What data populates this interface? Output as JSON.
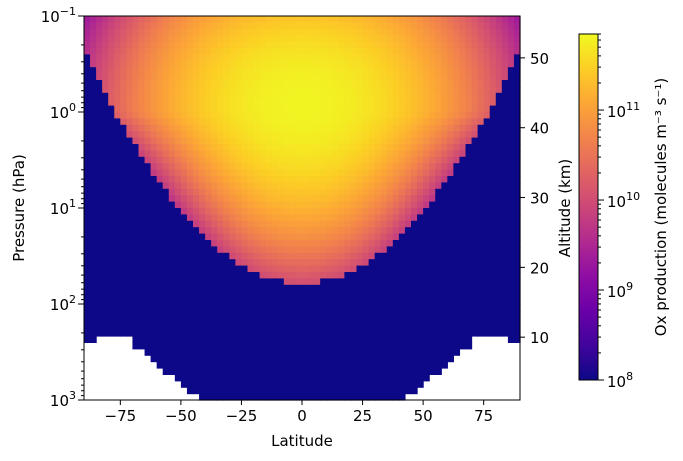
{
  "chart_data": {
    "type": "heatmap",
    "title": "",
    "xlabel": "Latitude",
    "ylabel": "Pressure (hPa)",
    "y2label": "Altitude (km)",
    "colorbar_label": "Ox production (molecules m⁻³ s⁻¹)",
    "colormap": "plasma",
    "xlim": [
      -90,
      90
    ],
    "ylim_pressure_hpa": [
      1000,
      0.1
    ],
    "y_scale": "log",
    "y2lim_km": [
      1,
      56
    ],
    "clim": [
      100000000.0,
      700000000000.0
    ],
    "c_scale": "log",
    "x_ticks": [
      -75,
      -50,
      -25,
      0,
      25,
      50,
      75
    ],
    "x_tick_labels": [
      "−75",
      "−50",
      "−25",
      "0",
      "25",
      "50",
      "75"
    ],
    "y_ticks": [
      {
        "value": 0.1,
        "base": "10",
        "exp": "−1"
      },
      {
        "value": 1,
        "base": "10",
        "exp": "0"
      },
      {
        "value": 10,
        "base": "10",
        "exp": "1"
      },
      {
        "value": 100,
        "base": "10",
        "exp": "2"
      },
      {
        "value": 1000,
        "base": "10",
        "exp": "3"
      }
    ],
    "y2_ticks": [
      10,
      20,
      30,
      40,
      50
    ],
    "c_ticks": [
      {
        "value": 100000000.0,
        "base": "10",
        "exp": "8"
      },
      {
        "value": 1000000000.0,
        "base": "10",
        "exp": "9"
      },
      {
        "value": 10000000000.0,
        "base": "10",
        "exp": "10"
      },
      {
        "value": 100000000000.0,
        "base": "10",
        "exp": "11"
      }
    ],
    "field_description": {
      "peak_value": 700000000000.0,
      "peak_pressure_hpa": 0.8,
      "peak_latitude": 0,
      "floor_value": 100000000.0,
      "data_missing_below_hpa": "surface at high southern/northern latitudes (white region)"
    },
    "grid": false
  }
}
